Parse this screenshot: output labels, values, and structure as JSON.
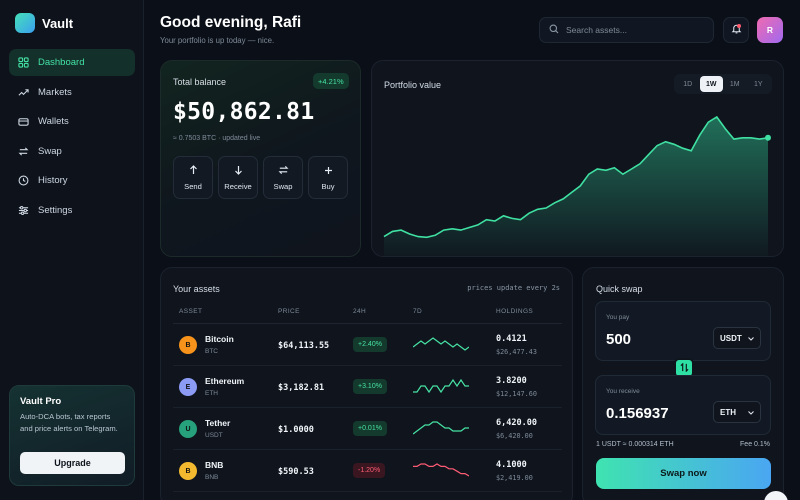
{
  "app": {
    "name": "Vault"
  },
  "sidebar": {
    "items": [
      {
        "label": "Dashboard",
        "icon": "grid-icon",
        "active": true
      },
      {
        "label": "Markets",
        "icon": "trend-icon",
        "active": false
      },
      {
        "label": "Wallets",
        "icon": "wallet-icon",
        "active": false
      },
      {
        "label": "Swap",
        "icon": "swap-icon",
        "active": false
      },
      {
        "label": "History",
        "icon": "clock-icon",
        "active": false
      },
      {
        "label": "Settings",
        "icon": "sliders-icon",
        "active": false
      }
    ],
    "promo": {
      "title": "Vault Pro",
      "description": "Auto-DCA bots, tax reports and price alerts on Telegram.",
      "button": "Upgrade"
    }
  },
  "header": {
    "greeting": "Good evening, Rafi",
    "subtitle": "Your portfolio is up today — nice.",
    "search_placeholder": "Search assets...",
    "avatar_initial": "R"
  },
  "balance": {
    "label": "Total balance",
    "change": "+4.21%",
    "amount": "$50,862.81",
    "subtext": "≈ 0.7503 BTC · updated live",
    "actions": [
      {
        "label": "Send",
        "icon": "arrow-up-icon"
      },
      {
        "label": "Receive",
        "icon": "arrow-down-icon"
      },
      {
        "label": "Swap",
        "icon": "swap-icon"
      },
      {
        "label": "Buy",
        "icon": "plus-icon"
      }
    ]
  },
  "portfolio": {
    "title": "Portfolio value",
    "ranges": [
      "1D",
      "1W",
      "1M",
      "1Y"
    ],
    "active_range": "1W",
    "accent": "#3fe0a2",
    "series": [
      8,
      12,
      13,
      10,
      8,
      7.5,
      9,
      13,
      14,
      13,
      15,
      17,
      21,
      20,
      24,
      22,
      21,
      26,
      29,
      30,
      34,
      37,
      42,
      47,
      56,
      60,
      59,
      61,
      56,
      60,
      64,
      71,
      78,
      81,
      79,
      76,
      74,
      86,
      96,
      100,
      91,
      83,
      84,
      84,
      83,
      84
    ]
  },
  "assets": {
    "title": "Your assets",
    "note": "prices update every 2s",
    "columns": [
      "ASSET",
      "PRICE",
      "24H",
      "7D",
      "HOLDINGS"
    ],
    "rows": [
      {
        "name": "Bitcoin",
        "symbol": "BTC",
        "letter": "B",
        "color": "#f7931a",
        "price": "$64,113.55",
        "change": "+2.40%",
        "trend": "up",
        "spark": [
          4,
          5,
          6,
          5,
          6,
          7,
          6,
          5,
          6,
          5,
          4,
          5,
          4,
          3,
          4
        ],
        "holdings": "0.4121",
        "value": "$26,477.43"
      },
      {
        "name": "Ethereum",
        "symbol": "ETH",
        "letter": "E",
        "color": "#8c9cf5",
        "price": "$3,182.81",
        "change": "+3.10%",
        "trend": "up",
        "spark": [
          5,
          5,
          6,
          6,
          5,
          6,
          6,
          5,
          6,
          6,
          7,
          6,
          7,
          6,
          6
        ],
        "holdings": "3.8200",
        "value": "$12,147.60"
      },
      {
        "name": "Tether",
        "symbol": "USDT",
        "letter": "U",
        "color": "#26a17b",
        "price": "$1.0000",
        "change": "+0.01%",
        "trend": "up",
        "spark": [
          3,
          4,
          5,
          6,
          6,
          7,
          7,
          6,
          5,
          5,
          4,
          4,
          4,
          5,
          5
        ],
        "holdings": "6,420.00",
        "value": "$6,420.00"
      },
      {
        "name": "BNB",
        "symbol": "BNB",
        "letter": "B",
        "color": "#f3ba2f",
        "price": "$590.53",
        "change": "-1.20%",
        "trend": "down",
        "spark": [
          6,
          6,
          7,
          7,
          6,
          6,
          7,
          6,
          6,
          5,
          5,
          4,
          3,
          3,
          2
        ],
        "holdings": "4.1000",
        "value": "$2,419.00"
      }
    ]
  },
  "swap": {
    "title": "Quick swap",
    "pay_label": "You pay",
    "pay_amount": "500",
    "pay_token": "USDT",
    "receive_label": "You receive",
    "receive_amount": "0.156937",
    "receive_token": "ETH",
    "rate": "1 USDT ≈ 0.000314 ETH",
    "fee": "Fee 0.1%",
    "button": "Swap now"
  }
}
